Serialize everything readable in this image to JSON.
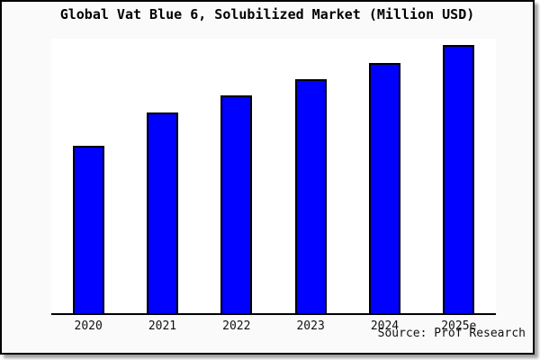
{
  "window": {
    "background_color": "#fafafa",
    "plot_background_color": "#ffffff",
    "frame_border_color": "#000000"
  },
  "chart_data": {
    "type": "bar",
    "title": "Global Vat Blue 6, Solubilized Market (Million USD)",
    "categories": [
      "2020",
      "2021",
      "2022",
      "2023",
      "2024",
      "2025e"
    ],
    "values": [
      62.5,
      75,
      81.5,
      87.5,
      93.5,
      100
    ],
    "ylim": [
      0,
      102.5
    ],
    "xlabel": "",
    "ylabel": "",
    "y_axis_visible": false,
    "grid": false,
    "legend": false,
    "bar_color": "#0000ff",
    "bar_edge_color": "#000000",
    "source": "Source: Prof Research"
  }
}
